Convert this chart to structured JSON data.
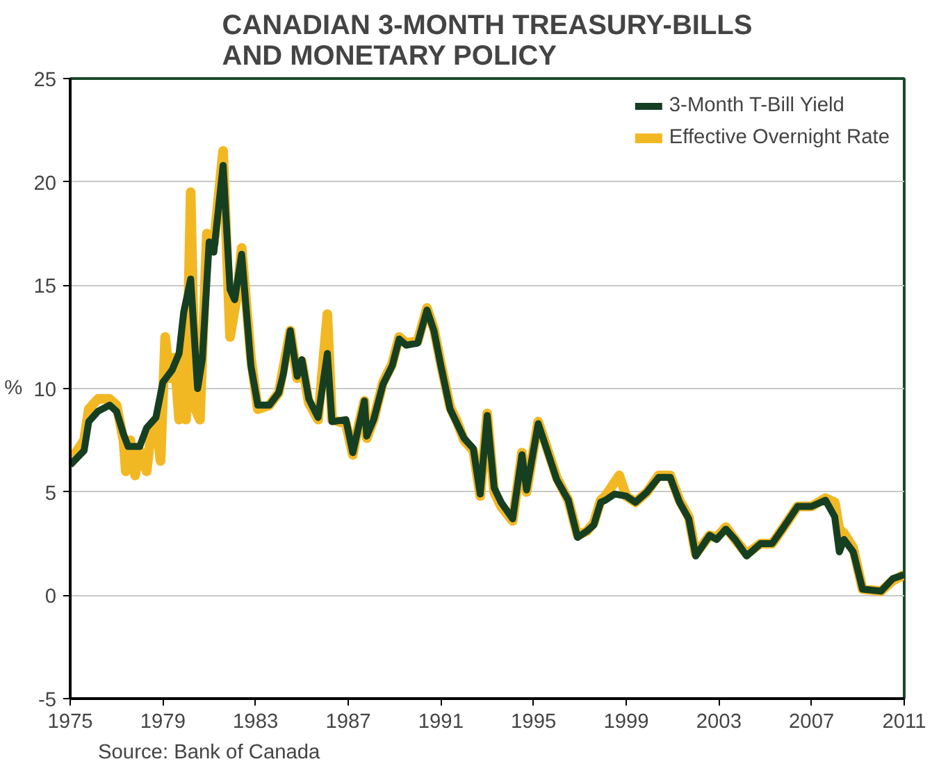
{
  "chart_data": {
    "type": "line",
    "title": "CANADIAN 3-MONTH TREASURY-BILLS\nAND MONETARY POLICY",
    "ylabel": "%",
    "xlim": [
      1975,
      2011
    ],
    "xticks": [
      1975,
      1979,
      1983,
      1987,
      1991,
      1995,
      1999,
      2003,
      2007,
      2011
    ],
    "ylim": [
      -5,
      25
    ],
    "yticks": [
      -5,
      0,
      5,
      10,
      15,
      20,
      25
    ],
    "grid": "y",
    "legend": "top right",
    "annotations": [
      "Source: Bank of Canada"
    ],
    "series": [
      {
        "name": "Effective Overnight Rate",
        "color": "#f2b824",
        "x": [
          1975.0,
          1975.6,
          1975.8,
          1976.2,
          1976.7,
          1977.0,
          1977.3,
          1977.4,
          1977.6,
          1977.8,
          1978.0,
          1978.3,
          1978.5,
          1978.7,
          1978.9,
          1979.1,
          1979.3,
          1979.5,
          1979.7,
          1979.9,
          1980.0,
          1980.2,
          1980.4,
          1980.6,
          1980.9,
          1981.2,
          1981.6,
          1981.9,
          1982.2,
          1982.4,
          1982.8,
          1983.1,
          1983.6,
          1984.0,
          1984.5,
          1984.8,
          1985.0,
          1985.3,
          1985.7,
          1986.1,
          1986.3,
          1986.9,
          1987.2,
          1987.4,
          1987.7,
          1987.8,
          1988.1,
          1988.5,
          1988.9,
          1989.2,
          1989.5,
          1990.0,
          1990.4,
          1990.7,
          1991.0,
          1991.4,
          1991.7,
          1992.0,
          1992.4,
          1992.7,
          1993.0,
          1993.3,
          1993.6,
          1994.1,
          1994.5,
          1994.7,
          1995.2,
          1995.5,
          1996.0,
          1996.5,
          1996.9,
          1997.3,
          1997.6,
          1997.9,
          1998.1,
          1998.7,
          1999.0,
          1999.4,
          1999.9,
          2000.4,
          2000.9,
          2001.3,
          2001.7,
          2002.0,
          2002.6,
          2002.9,
          2003.3,
          2003.7,
          2004.2,
          2004.8,
          2005.3,
          2005.8,
          2006.4,
          2007.0,
          2007.6,
          2008.0,
          2008.2,
          2008.4,
          2008.8,
          2009.2,
          2010.0,
          2010.5,
          2011.0
        ],
        "values": [
          6.5,
          7.5,
          9.0,
          9.5,
          9.5,
          9.2,
          7.5,
          6.0,
          7.5,
          5.8,
          7.0,
          6.0,
          8.0,
          8.5,
          6.5,
          12.5,
          10.5,
          11.5,
          8.5,
          13.0,
          8.5,
          19.5,
          9.0,
          8.5,
          17.5,
          17.0,
          21.5,
          12.5,
          14.5,
          16.8,
          11.5,
          9.0,
          9.2,
          9.8,
          12.8,
          10.5,
          11.3,
          9.3,
          8.5,
          13.6,
          8.5,
          8.3,
          6.8,
          8.0,
          9.4,
          7.6,
          8.5,
          10.3,
          11.2,
          12.5,
          12.2,
          12.3,
          13.9,
          12.9,
          11.2,
          9.1,
          8.4,
          7.5,
          7.0,
          4.8,
          8.8,
          5.0,
          4.3,
          3.6,
          6.9,
          5.0,
          8.4,
          7.4,
          5.7,
          4.6,
          2.9,
          3.1,
          3.5,
          4.6,
          4.8,
          5.8,
          4.8,
          4.5,
          5.0,
          5.8,
          5.8,
          4.6,
          3.8,
          2.0,
          2.9,
          2.8,
          3.3,
          2.7,
          2.0,
          2.5,
          2.5,
          3.3,
          4.3,
          4.3,
          4.7,
          4.5,
          3.2,
          3.0,
          2.3,
          0.3,
          0.2,
          0.7,
          1.0
        ]
      },
      {
        "name": "3-Month T-Bill Yield",
        "color": "#163f22",
        "x": [
          1975.0,
          1975.6,
          1975.8,
          1976.2,
          1976.7,
          1977.0,
          1977.3,
          1977.5,
          1978.0,
          1978.3,
          1978.7,
          1979.0,
          1979.4,
          1979.7,
          1979.9,
          1980.2,
          1980.5,
          1980.7,
          1981.0,
          1981.2,
          1981.6,
          1981.9,
          1982.1,
          1982.4,
          1982.8,
          1983.1,
          1983.6,
          1984.0,
          1984.2,
          1984.5,
          1984.8,
          1985.0,
          1985.3,
          1985.7,
          1986.1,
          1986.3,
          1986.9,
          1987.2,
          1987.4,
          1987.7,
          1987.8,
          1988.1,
          1988.5,
          1988.9,
          1989.2,
          1989.5,
          1990.0,
          1990.4,
          1990.7,
          1991.0,
          1991.4,
          1991.7,
          1992.0,
          1992.4,
          1992.7,
          1993.0,
          1993.3,
          1993.6,
          1994.1,
          1994.5,
          1994.7,
          1995.2,
          1995.5,
          1996.0,
          1996.5,
          1996.9,
          1997.3,
          1997.6,
          1997.9,
          1998.1,
          1998.5,
          1999.0,
          1999.4,
          1999.9,
          2000.4,
          2000.9,
          2001.3,
          2001.7,
          2002.0,
          2002.6,
          2002.9,
          2003.3,
          2003.7,
          2004.2,
          2004.8,
          2005.3,
          2005.8,
          2006.4,
          2007.0,
          2007.6,
          2008.0,
          2008.2,
          2008.4,
          2008.8,
          2009.2,
          2010.0,
          2010.5,
          2011.0
        ],
        "values": [
          6.3,
          7.0,
          8.4,
          8.9,
          9.2,
          8.9,
          7.8,
          7.2,
          7.2,
          8.1,
          8.6,
          10.3,
          10.9,
          11.7,
          13.7,
          15.3,
          10.0,
          11.4,
          17.1,
          16.6,
          20.8,
          14.8,
          14.3,
          16.5,
          11.1,
          9.2,
          9.2,
          9.8,
          10.7,
          12.8,
          10.6,
          11.4,
          9.5,
          8.6,
          11.7,
          8.4,
          8.5,
          6.9,
          7.9,
          9.4,
          7.7,
          8.5,
          10.2,
          11.1,
          12.4,
          12.1,
          12.2,
          13.8,
          12.8,
          11.1,
          9.0,
          8.3,
          7.6,
          7.1,
          4.9,
          8.7,
          5.2,
          4.5,
          3.7,
          6.8,
          5.1,
          8.3,
          7.3,
          5.6,
          4.6,
          2.8,
          3.1,
          3.4,
          4.5,
          4.6,
          4.9,
          4.8,
          4.5,
          5.0,
          5.7,
          5.7,
          4.5,
          3.7,
          1.9,
          2.9,
          2.7,
          3.2,
          2.7,
          1.9,
          2.5,
          2.5,
          3.3,
          4.3,
          4.3,
          4.6,
          3.8,
          2.1,
          2.7,
          2.1,
          0.3,
          0.2,
          0.8,
          1.0
        ]
      }
    ]
  }
}
